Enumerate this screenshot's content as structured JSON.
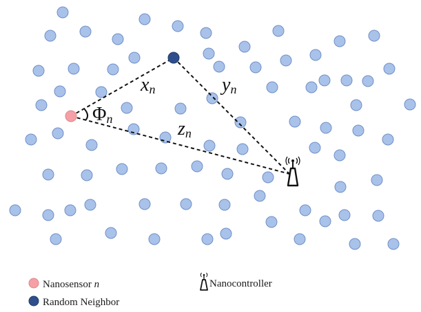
{
  "diagram": {
    "labels": {
      "x": "x",
      "y": "y",
      "z": "z",
      "phi": "Φ",
      "subscript": "n"
    },
    "legend": {
      "nanosensor_label": "Nanosensor ",
      "nanosensor_var": "n",
      "neighbor_label": "Random Neighbor",
      "controller_label": "Nanocontroller"
    },
    "colors": {
      "node_fill": "#a9c2ea",
      "node_stroke": "#6f8fc6",
      "nanosensor_fill": "#f4a0a6",
      "neighbor_fill": "#2f4f8c",
      "line": "#111111"
    },
    "icons": {
      "controller": "antenna-tower-icon"
    }
  }
}
